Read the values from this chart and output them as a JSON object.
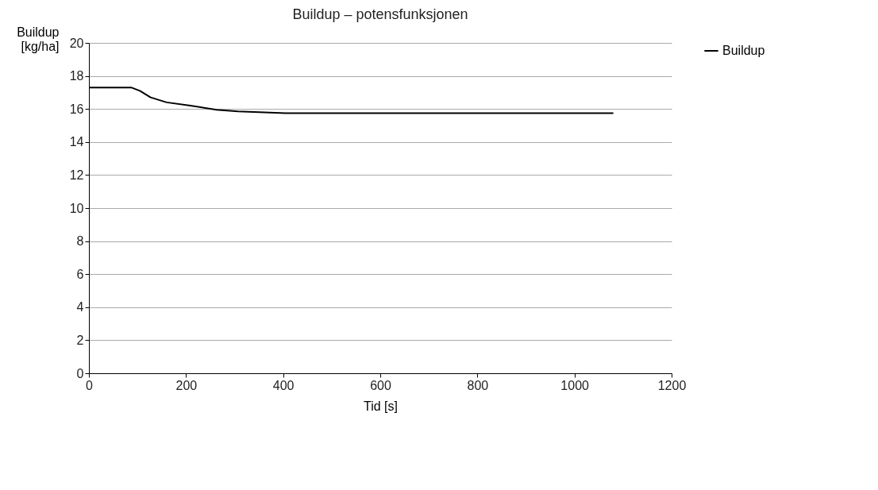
{
  "chart_data": {
    "type": "line",
    "title": "Buildup – potensfunksjonen",
    "xlabel": "Tid [s]",
    "ylabel": "Buildup [kg/ha]",
    "xlim": [
      0,
      1200
    ],
    "xticks": [
      0,
      200,
      400,
      600,
      800,
      1000,
      1200
    ],
    "ylim": [
      0,
      20
    ],
    "yticks": [
      0,
      2,
      4,
      6,
      8,
      10,
      12,
      14,
      16,
      18,
      20
    ],
    "grid": "y",
    "legend": "right",
    "series": [
      {
        "name": "Buildup",
        "color": "#000000",
        "x": [
          0,
          87,
          105,
          127,
          160,
          209,
          263,
          307,
          405,
          1080
        ],
        "values": [
          17.3,
          17.3,
          17.1,
          16.7,
          16.4,
          16.2,
          15.95,
          15.85,
          15.75,
          15.75
        ]
      }
    ]
  }
}
